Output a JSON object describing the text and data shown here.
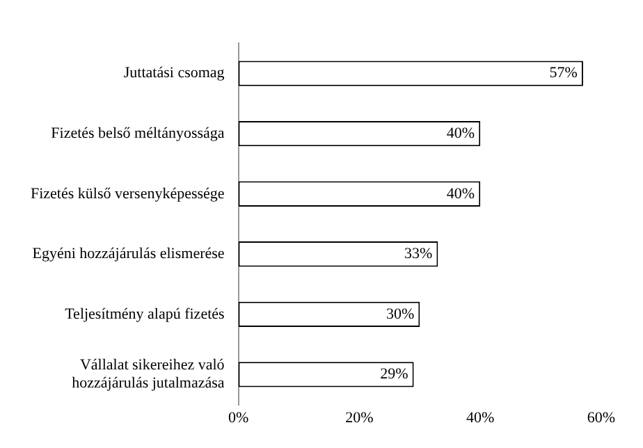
{
  "chart_data": {
    "type": "bar",
    "orientation": "horizontal",
    "categories": [
      "Juttatási csomag",
      "Fizetés belső méltányossága",
      "Fizetés külső versenyképessége",
      "Egyéni hozzájárulás elismerése",
      "Teljesítmény alapú fizetés",
      "Vállalat sikereihez való hozzájárulás jutalmazása"
    ],
    "values": [
      57,
      40,
      40,
      33,
      30,
      29
    ],
    "value_labels": [
      "57%",
      "40%",
      "40%",
      "33%",
      "30%",
      "29%"
    ],
    "color": "#ffffff",
    "xlim": [
      0,
      60
    ],
    "xticks": [
      {
        "value": 0,
        "label": "0%"
      },
      {
        "value": 20,
        "label": "20%"
      },
      {
        "value": 40,
        "label": "40%"
      },
      {
        "value": 60,
        "label": "60%"
      }
    ],
    "grid": false
  }
}
